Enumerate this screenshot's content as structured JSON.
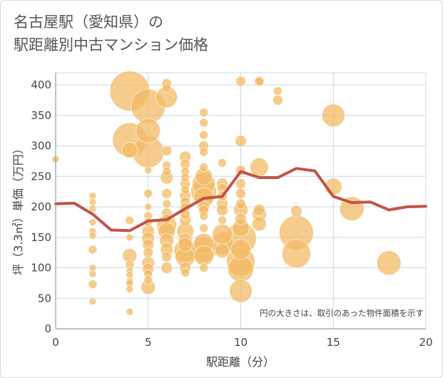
{
  "title": {
    "line1": "名古屋駅（愛知県）の",
    "line2": "駅距離別中古マンション価格"
  },
  "note": "円の大きさは、取引のあった物件面積を示す",
  "colors": {
    "bubble": "#f2bb66",
    "line": "#c0544a",
    "grid": "#c8d8e8",
    "axis": "#8aa0b8"
  },
  "chart_data": {
    "type": "scatter",
    "xlabel": "駅距離（分）",
    "ylabel": "坪（3.3㎡）単価（万円）",
    "xlim": [
      0,
      20
    ],
    "ylim": [
      0,
      420
    ],
    "xticks": [
      0,
      5,
      10,
      15,
      20
    ],
    "yticks": [
      0,
      50,
      100,
      150,
      200,
      250,
      300,
      350,
      400
    ],
    "grid": true,
    "bubbles": [
      {
        "x": 0,
        "y": 278,
        "r": 5
      },
      {
        "x": 2,
        "y": 218,
        "r": 5
      },
      {
        "x": 2,
        "y": 208,
        "r": 5
      },
      {
        "x": 2,
        "y": 197,
        "r": 5
      },
      {
        "x": 2,
        "y": 175,
        "r": 5
      },
      {
        "x": 2,
        "y": 160,
        "r": 5
      },
      {
        "x": 2,
        "y": 153,
        "r": 5
      },
      {
        "x": 2,
        "y": 130,
        "r": 6
      },
      {
        "x": 2,
        "y": 100,
        "r": 5
      },
      {
        "x": 2,
        "y": 90,
        "r": 5
      },
      {
        "x": 2,
        "y": 73,
        "r": 6
      },
      {
        "x": 2,
        "y": 45,
        "r": 5
      },
      {
        "x": 4,
        "y": 390,
        "r": 28
      },
      {
        "x": 4,
        "y": 310,
        "r": 24
      },
      {
        "x": 4,
        "y": 293,
        "r": 11
      },
      {
        "x": 4,
        "y": 178,
        "r": 6
      },
      {
        "x": 4,
        "y": 150,
        "r": 5
      },
      {
        "x": 4,
        "y": 120,
        "r": 10
      },
      {
        "x": 4,
        "y": 105,
        "r": 6
      },
      {
        "x": 4,
        "y": 95,
        "r": 5
      },
      {
        "x": 4,
        "y": 88,
        "r": 5
      },
      {
        "x": 4,
        "y": 78,
        "r": 5
      },
      {
        "x": 4,
        "y": 74,
        "r": 5
      },
      {
        "x": 4,
        "y": 65,
        "r": 5
      },
      {
        "x": 4,
        "y": 28,
        "r": 5
      },
      {
        "x": 5,
        "y": 365,
        "r": 24
      },
      {
        "x": 5,
        "y": 325,
        "r": 17
      },
      {
        "x": 5,
        "y": 290,
        "r": 22
      },
      {
        "x": 5,
        "y": 260,
        "r": 5
      },
      {
        "x": 5,
        "y": 222,
        "r": 6
      },
      {
        "x": 5,
        "y": 200,
        "r": 5
      },
      {
        "x": 5,
        "y": 185,
        "r": 6
      },
      {
        "x": 5,
        "y": 175,
        "r": 6
      },
      {
        "x": 5,
        "y": 160,
        "r": 9
      },
      {
        "x": 5,
        "y": 148,
        "r": 9
      },
      {
        "x": 5,
        "y": 138,
        "r": 8
      },
      {
        "x": 5,
        "y": 125,
        "r": 7
      },
      {
        "x": 5,
        "y": 108,
        "r": 9
      },
      {
        "x": 5,
        "y": 98,
        "r": 8
      },
      {
        "x": 5,
        "y": 90,
        "r": 6
      },
      {
        "x": 5,
        "y": 80,
        "r": 6
      },
      {
        "x": 5,
        "y": 68,
        "r": 10
      },
      {
        "x": 6,
        "y": 402,
        "r": 7
      },
      {
        "x": 6,
        "y": 395,
        "r": 6
      },
      {
        "x": 6,
        "y": 380,
        "r": 15
      },
      {
        "x": 6,
        "y": 292,
        "r": 7
      },
      {
        "x": 6,
        "y": 268,
        "r": 6
      },
      {
        "x": 6,
        "y": 258,
        "r": 6
      },
      {
        "x": 6,
        "y": 248,
        "r": 9
      },
      {
        "x": 6,
        "y": 222,
        "r": 7
      },
      {
        "x": 6,
        "y": 205,
        "r": 6
      },
      {
        "x": 6,
        "y": 190,
        "r": 7
      },
      {
        "x": 6,
        "y": 180,
        "r": 7
      },
      {
        "x": 6,
        "y": 170,
        "r": 14
      },
      {
        "x": 6,
        "y": 160,
        "r": 12
      },
      {
        "x": 6,
        "y": 145,
        "r": 10
      },
      {
        "x": 6,
        "y": 130,
        "r": 9
      },
      {
        "x": 6,
        "y": 118,
        "r": 7
      },
      {
        "x": 6,
        "y": 100,
        "r": 8
      },
      {
        "x": 7,
        "y": 282,
        "r": 8
      },
      {
        "x": 7,
        "y": 270,
        "r": 7
      },
      {
        "x": 7,
        "y": 258,
        "r": 6
      },
      {
        "x": 7,
        "y": 248,
        "r": 6
      },
      {
        "x": 7,
        "y": 238,
        "r": 7
      },
      {
        "x": 7,
        "y": 228,
        "r": 6
      },
      {
        "x": 7,
        "y": 218,
        "r": 8
      },
      {
        "x": 7,
        "y": 208,
        "r": 7
      },
      {
        "x": 7,
        "y": 198,
        "r": 7
      },
      {
        "x": 7,
        "y": 188,
        "r": 7
      },
      {
        "x": 7,
        "y": 178,
        "r": 8
      },
      {
        "x": 7,
        "y": 160,
        "r": 12
      },
      {
        "x": 7,
        "y": 145,
        "r": 10
      },
      {
        "x": 7,
        "y": 138,
        "r": 10
      },
      {
        "x": 7,
        "y": 128,
        "r": 16
      },
      {
        "x": 7,
        "y": 118,
        "r": 14
      },
      {
        "x": 7,
        "y": 100,
        "r": 8
      },
      {
        "x": 7,
        "y": 92,
        "r": 6
      },
      {
        "x": 8,
        "y": 355,
        "r": 6
      },
      {
        "x": 8,
        "y": 338,
        "r": 6
      },
      {
        "x": 8,
        "y": 318,
        "r": 6
      },
      {
        "x": 8,
        "y": 300,
        "r": 7
      },
      {
        "x": 8,
        "y": 290,
        "r": 6
      },
      {
        "x": 8,
        "y": 265,
        "r": 6
      },
      {
        "x": 8,
        "y": 250,
        "r": 12
      },
      {
        "x": 8,
        "y": 238,
        "r": 16
      },
      {
        "x": 8,
        "y": 225,
        "r": 18
      },
      {
        "x": 8,
        "y": 215,
        "r": 14
      },
      {
        "x": 8,
        "y": 200,
        "r": 8
      },
      {
        "x": 8,
        "y": 195,
        "r": 7
      },
      {
        "x": 8,
        "y": 185,
        "r": 6
      },
      {
        "x": 8,
        "y": 165,
        "r": 6
      },
      {
        "x": 8,
        "y": 140,
        "r": 14
      },
      {
        "x": 8,
        "y": 130,
        "r": 18
      },
      {
        "x": 8,
        "y": 120,
        "r": 14
      },
      {
        "x": 8,
        "y": 100,
        "r": 6
      },
      {
        "x": 9,
        "y": 272,
        "r": 6
      },
      {
        "x": 9,
        "y": 238,
        "r": 8
      },
      {
        "x": 9,
        "y": 230,
        "r": 7
      },
      {
        "x": 9,
        "y": 218,
        "r": 7
      },
      {
        "x": 9,
        "y": 205,
        "r": 8
      },
      {
        "x": 9,
        "y": 195,
        "r": 8
      },
      {
        "x": 9,
        "y": 178,
        "r": 6
      },
      {
        "x": 9,
        "y": 155,
        "r": 14
      },
      {
        "x": 9,
        "y": 140,
        "r": 16
      },
      {
        "x": 9,
        "y": 128,
        "r": 10
      },
      {
        "x": 10,
        "y": 406,
        "r": 7
      },
      {
        "x": 10,
        "y": 308,
        "r": 8
      },
      {
        "x": 10,
        "y": 260,
        "r": 7
      },
      {
        "x": 10,
        "y": 238,
        "r": 7
      },
      {
        "x": 10,
        "y": 222,
        "r": 7
      },
      {
        "x": 10,
        "y": 205,
        "r": 7
      },
      {
        "x": 10,
        "y": 195,
        "r": 10
      },
      {
        "x": 10,
        "y": 180,
        "r": 8
      },
      {
        "x": 10,
        "y": 165,
        "r": 12
      },
      {
        "x": 10,
        "y": 148,
        "r": 22
      },
      {
        "x": 10,
        "y": 130,
        "r": 14
      },
      {
        "x": 10,
        "y": 110,
        "r": 20
      },
      {
        "x": 10,
        "y": 98,
        "r": 18
      },
      {
        "x": 10,
        "y": 62,
        "r": 16
      },
      {
        "x": 11,
        "y": 406,
        "r": 7
      },
      {
        "x": 11,
        "y": 406,
        "r": 6
      },
      {
        "x": 11,
        "y": 265,
        "r": 13
      },
      {
        "x": 11,
        "y": 195,
        "r": 8
      },
      {
        "x": 11,
        "y": 188,
        "r": 10
      },
      {
        "x": 11,
        "y": 172,
        "r": 10
      },
      {
        "x": 12,
        "y": 390,
        "r": 6
      },
      {
        "x": 12,
        "y": 375,
        "r": 7
      },
      {
        "x": 13,
        "y": 193,
        "r": 8
      },
      {
        "x": 13,
        "y": 158,
        "r": 24
      },
      {
        "x": 13,
        "y": 123,
        "r": 20
      },
      {
        "x": 15,
        "y": 350,
        "r": 16
      },
      {
        "x": 15,
        "y": 233,
        "r": 12
      },
      {
        "x": 16,
        "y": 197,
        "r": 17
      },
      {
        "x": 18,
        "y": 108,
        "r": 17
      }
    ],
    "average_line": {
      "x": [
        0,
        1,
        2,
        3,
        4,
        5,
        6,
        7,
        8,
        9,
        10,
        11,
        12,
        13,
        14,
        15,
        16,
        17,
        18,
        19,
        20
      ],
      "y": [
        205,
        206,
        188,
        162,
        161,
        177,
        179,
        197,
        214,
        217,
        258,
        248,
        248,
        263,
        259,
        217,
        207,
        208,
        195,
        200,
        201
      ]
    }
  }
}
